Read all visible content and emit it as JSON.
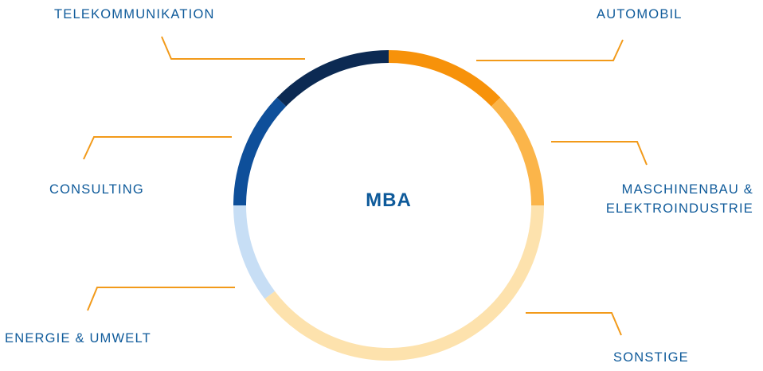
{
  "center": {
    "title": "MBA"
  },
  "colors": {
    "label": "#0e5a9a",
    "leader": "#f29a1a"
  },
  "segments": [
    {
      "name": "automobil",
      "label": "AUTOMOBIL",
      "color": "#f7920a"
    },
    {
      "name": "maschinenbau",
      "label": "MASCHINENBAU & ELEKTROINDUSTRIE",
      "color": "#fbb54a"
    },
    {
      "name": "sonstige",
      "label": "SONSTIGE",
      "color": "#fde2ad"
    },
    {
      "name": "energie",
      "label": "ENERGIE & UMWELT",
      "color": "#c7def5"
    },
    {
      "name": "consulting",
      "label": "CONSULTING",
      "color": "#0e4f9a"
    },
    {
      "name": "telekommunikation",
      "label": "TELEKOMMUNIKATION",
      "color": "#0c2a53"
    }
  ],
  "labels": {
    "telekommunikation": "TELEKOMMUNIKATION",
    "automobil": "AUTOMOBIL",
    "consulting": "CONSULTING",
    "maschinenbau_line1": "MASCHINENBAU &",
    "maschinenbau_line2": "ELEKTROINDUSTRIE",
    "energie": "ENERGIE & UMWELT",
    "sonstige": "SONSTIGE"
  }
}
